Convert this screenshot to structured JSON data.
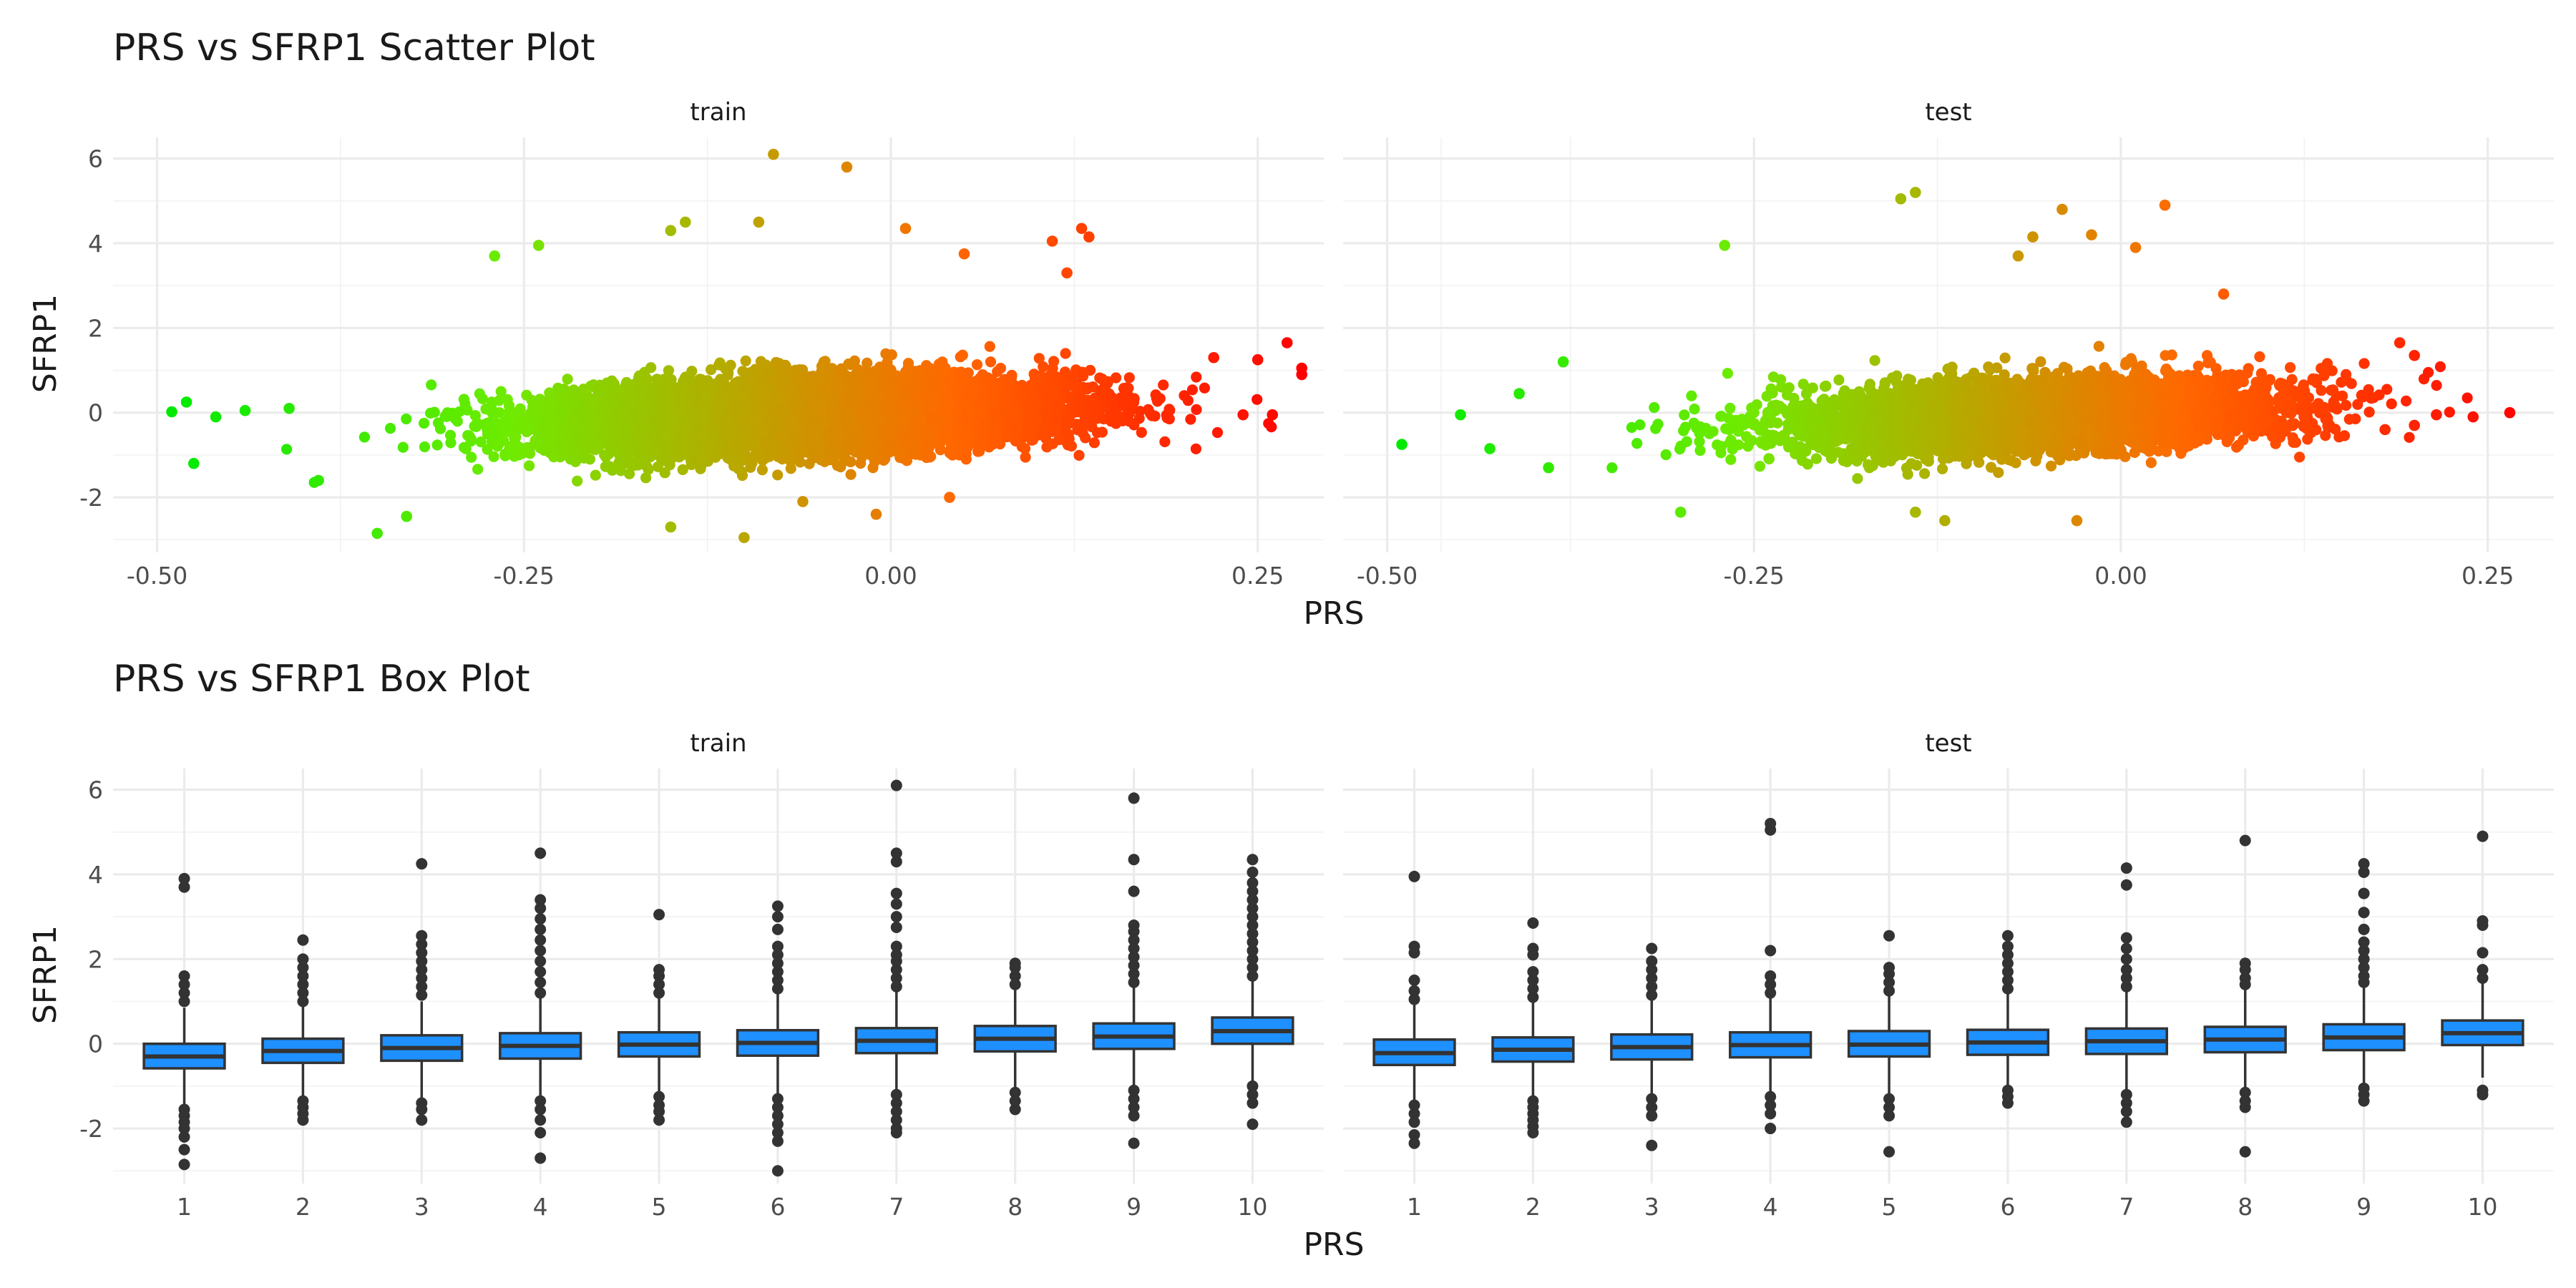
{
  "chart_data": [
    {
      "type": "scatter",
      "title": "PRS vs SFRP1 Scatter Plot",
      "xlabel": "PRS",
      "ylabel": "SFRP1",
      "facets": [
        "train",
        "test"
      ],
      "xlim": [
        -0.53,
        0.295
      ],
      "ylim": [
        -3.3,
        6.5
      ],
      "x_ticks": [
        -0.5,
        -0.25,
        0.0,
        0.25
      ],
      "x_tick_labels": [
        "-0.50",
        "-0.25",
        "0.00",
        "0.25"
      ],
      "y_ticks": [
        -2,
        0,
        2,
        4,
        6
      ],
      "y_tick_labels": [
        "-2",
        "0",
        "2",
        "4",
        "6"
      ],
      "grid": true,
      "color_scale": {
        "low": "#00ff00",
        "high": "#ff0000",
        "mapped_to": "PRS",
        "range": [
          -0.49,
          0.28
        ]
      },
      "panels": {
        "train": {
          "approx_points": 9000,
          "trend": {
            "slope": 1.2,
            "intercept": 0.0
          },
          "x_range": [
            -0.49,
            0.28
          ],
          "points": [
            {
              "x": -0.49,
              "y": 0.02
            },
            {
              "x": -0.48,
              "y": 0.25
            },
            {
              "x": -0.475,
              "y": -1.2
            },
            {
              "x": -0.46,
              "y": -0.1
            },
            {
              "x": -0.44,
              "y": 0.05
            },
            {
              "x": -0.41,
              "y": 0.1
            },
            {
              "x": -0.39,
              "y": -1.6
            },
            {
              "x": -0.35,
              "y": -2.85
            },
            {
              "x": -0.33,
              "y": -2.45
            },
            {
              "x": -0.27,
              "y": 3.7
            },
            {
              "x": -0.24,
              "y": 3.95
            },
            {
              "x": -0.15,
              "y": -2.7
            },
            {
              "x": -0.14,
              "y": 4.5
            },
            {
              "x": -0.15,
              "y": 4.3
            },
            {
              "x": -0.08,
              "y": 6.1
            },
            {
              "x": -0.03,
              "y": 5.8
            },
            {
              "x": -0.09,
              "y": 4.5
            },
            {
              "x": -0.1,
              "y": -2.95
            },
            {
              "x": -0.06,
              "y": -2.1
            },
            {
              "x": 0.01,
              "y": 4.35
            },
            {
              "x": 0.05,
              "y": 3.75
            },
            {
              "x": 0.04,
              "y": -2.0
            },
            {
              "x": 0.11,
              "y": 4.05
            },
            {
              "x": 0.13,
              "y": 4.35
            },
            {
              "x": 0.135,
              "y": 4.15
            },
            {
              "x": 0.12,
              "y": 3.3
            },
            {
              "x": 0.22,
              "y": 1.3
            },
            {
              "x": 0.24,
              "y": -0.05
            },
            {
              "x": 0.25,
              "y": 1.25
            },
            {
              "x": 0.27,
              "y": 1.65
            },
            {
              "x": 0.28,
              "y": 1.05
            },
            {
              "x": 0.28,
              "y": 0.9
            },
            {
              "x": 0.26,
              "y": -0.05
            },
            {
              "x": -0.01,
              "y": -2.4
            }
          ]
        },
        "test": {
          "approx_points": 4500,
          "trend": {
            "slope": 1.2,
            "intercept": 0.0
          },
          "x_range": [
            -0.49,
            0.265
          ],
          "points": [
            {
              "x": -0.49,
              "y": -0.75
            },
            {
              "x": -0.45,
              "y": -0.05
            },
            {
              "x": -0.43,
              "y": -0.85
            },
            {
              "x": -0.41,
              "y": 0.45
            },
            {
              "x": -0.39,
              "y": -1.3
            },
            {
              "x": -0.38,
              "y": 1.2
            },
            {
              "x": -0.27,
              "y": 3.95
            },
            {
              "x": -0.3,
              "y": -2.35
            },
            {
              "x": -0.15,
              "y": 5.05
            },
            {
              "x": -0.14,
              "y": 5.2
            },
            {
              "x": -0.04,
              "y": 4.8
            },
            {
              "x": -0.07,
              "y": 3.7
            },
            {
              "x": -0.06,
              "y": 4.15
            },
            {
              "x": -0.02,
              "y": 4.2
            },
            {
              "x": 0.01,
              "y": 3.9
            },
            {
              "x": 0.03,
              "y": 4.9
            },
            {
              "x": 0.07,
              "y": 2.8
            },
            {
              "x": -0.03,
              "y": -2.55
            },
            {
              "x": -0.12,
              "y": -2.55
            },
            {
              "x": -0.14,
              "y": -2.35
            },
            {
              "x": 0.19,
              "y": 1.65
            },
            {
              "x": 0.2,
              "y": 1.35
            },
            {
              "x": 0.18,
              "y": -0.4
            },
            {
              "x": 0.2,
              "y": -0.3
            },
            {
              "x": 0.215,
              "y": -0.05
            },
            {
              "x": 0.24,
              "y": -0.1
            },
            {
              "x": 0.265,
              "y": 0.0
            }
          ]
        }
      }
    },
    {
      "type": "box",
      "title": "PRS vs SFRP1 Box Plot",
      "xlabel": "PRS",
      "ylabel": "SFRP1",
      "facets": [
        "train",
        "test"
      ],
      "categories": [
        "1",
        "2",
        "3",
        "4",
        "5",
        "6",
        "7",
        "8",
        "9",
        "10"
      ],
      "ylim": [
        -3.3,
        6.5
      ],
      "y_ticks": [
        -2,
        0,
        2,
        4,
        6
      ],
      "y_tick_labels": [
        "-2",
        "0",
        "2",
        "4",
        "6"
      ],
      "grid": true,
      "box_fill": "#1e90ff",
      "box_line": "#333333",
      "panels": {
        "train": {
          "boxes": [
            {
              "q1": -0.58,
              "median": -0.3,
              "q3": 0.0,
              "whisker_low": -1.45,
              "whisker_high": 0.85,
              "outliers": [
                -1.55,
                -1.7,
                -1.85,
                -2.0,
                -2.2,
                -2.5,
                -2.85,
                1.0,
                1.2,
                1.4,
                1.6,
                3.7,
                3.9
              ]
            },
            {
              "q1": -0.45,
              "median": -0.17,
              "q3": 0.12,
              "whisker_low": -1.25,
              "whisker_high": 0.9,
              "outliers": [
                -1.35,
                -1.5,
                -1.65,
                -1.8,
                1.0,
                1.2,
                1.4,
                1.6,
                1.8,
                2.0,
                2.45
              ]
            },
            {
              "q1": -0.4,
              "median": -0.1,
              "q3": 0.2,
              "whisker_low": -1.3,
              "whisker_high": 1.0,
              "outliers": [
                -1.4,
                -1.55,
                -1.8,
                1.15,
                1.35,
                1.55,
                1.75,
                1.95,
                2.15,
                2.35,
                2.55,
                4.25
              ]
            },
            {
              "q1": -0.35,
              "median": -0.05,
              "q3": 0.25,
              "whisker_low": -1.25,
              "whisker_high": 1.1,
              "outliers": [
                -1.35,
                -1.55,
                -1.8,
                -2.1,
                -2.7,
                1.2,
                1.45,
                1.7,
                1.95,
                2.2,
                2.45,
                2.7,
                2.95,
                3.2,
                3.4,
                4.5
              ]
            },
            {
              "q1": -0.3,
              "median": -0.02,
              "q3": 0.27,
              "whisker_low": -1.15,
              "whisker_high": 1.1,
              "outliers": [
                -1.25,
                -1.45,
                -1.6,
                -1.8,
                1.2,
                1.4,
                1.6,
                1.75,
                3.05
              ]
            },
            {
              "q1": -0.28,
              "median": 0.02,
              "q3": 0.32,
              "whisker_low": -1.2,
              "whisker_high": 1.2,
              "outliers": [
                -1.3,
                -1.5,
                -1.7,
                -1.9,
                -2.1,
                -2.3,
                -3.0,
                1.3,
                1.5,
                1.7,
                1.9,
                2.1,
                2.3,
                2.7,
                3.0,
                3.25
              ]
            },
            {
              "q1": -0.22,
              "median": 0.07,
              "q3": 0.37,
              "whisker_low": -1.1,
              "whisker_high": 1.25,
              "outliers": [
                -1.2,
                -1.4,
                -1.6,
                -1.8,
                -2.0,
                -2.1,
                1.35,
                1.55,
                1.75,
                1.95,
                2.1,
                2.3,
                2.75,
                3.0,
                3.3,
                3.55,
                4.3,
                4.5,
                6.1
              ]
            },
            {
              "q1": -0.18,
              "median": 0.12,
              "q3": 0.42,
              "whisker_low": -1.05,
              "whisker_high": 1.3,
              "outliers": [
                -1.15,
                -1.35,
                -1.55,
                1.4,
                1.6,
                1.8,
                1.9
              ]
            },
            {
              "q1": -0.12,
              "median": 0.17,
              "q3": 0.48,
              "whisker_low": -1.0,
              "whisker_high": 1.35,
              "outliers": [
                -1.1,
                -1.3,
                -1.5,
                -1.7,
                -2.35,
                1.45,
                1.65,
                1.85,
                2.05,
                2.25,
                2.45,
                2.65,
                2.8,
                3.6,
                4.35,
                5.8
              ]
            },
            {
              "q1": 0.0,
              "median": 0.3,
              "q3": 0.62,
              "whisker_low": -0.9,
              "whisker_high": 1.5,
              "outliers": [
                -1.0,
                -1.2,
                -1.4,
                -1.9,
                1.6,
                1.8,
                2.0,
                2.2,
                2.4,
                2.6,
                2.8,
                3.0,
                3.2,
                3.4,
                3.6,
                3.8,
                4.05,
                4.35
              ]
            }
          ]
        },
        "test": {
          "boxes": [
            {
              "q1": -0.5,
              "median": -0.22,
              "q3": 0.1,
              "whisker_low": -1.35,
              "whisker_high": 0.95,
              "outliers": [
                -1.45,
                -1.65,
                -1.85,
                -2.15,
                -2.35,
                1.05,
                1.25,
                1.5,
                2.15,
                2.3,
                3.95
              ]
            },
            {
              "q1": -0.42,
              "median": -0.14,
              "q3": 0.15,
              "whisker_low": -1.25,
              "whisker_high": 1.0,
              "outliers": [
                -1.35,
                -1.5,
                -1.65,
                -1.8,
                -1.95,
                -2.1,
                1.1,
                1.3,
                1.5,
                1.7,
                2.1,
                2.25,
                2.85
              ]
            },
            {
              "q1": -0.37,
              "median": -0.08,
              "q3": 0.22,
              "whisker_low": -1.2,
              "whisker_high": 1.05,
              "outliers": [
                -1.3,
                -1.5,
                -1.7,
                -2.4,
                1.15,
                1.35,
                1.55,
                1.75,
                1.95,
                2.25
              ]
            },
            {
              "q1": -0.32,
              "median": -0.03,
              "q3": 0.27,
              "whisker_low": -1.15,
              "whisker_high": 1.1,
              "outliers": [
                -1.25,
                -1.45,
                -1.65,
                -2.0,
                1.2,
                1.4,
                1.6,
                2.2,
                5.05,
                5.2
              ]
            },
            {
              "q1": -0.3,
              "median": -0.02,
              "q3": 0.3,
              "whisker_low": -1.2,
              "whisker_high": 1.15,
              "outliers": [
                -1.3,
                -1.5,
                -1.7,
                -2.55,
                1.25,
                1.45,
                1.65,
                1.8,
                2.55
              ]
            },
            {
              "q1": -0.26,
              "median": 0.03,
              "q3": 0.33,
              "whisker_low": -1.0,
              "whisker_high": 1.2,
              "outliers": [
                -1.1,
                -1.25,
                -1.4,
                1.3,
                1.5,
                1.7,
                1.9,
                2.1,
                2.3,
                2.55
              ]
            },
            {
              "q1": -0.24,
              "median": 0.06,
              "q3": 0.36,
              "whisker_low": -1.1,
              "whisker_high": 1.25,
              "outliers": [
                -1.2,
                -1.4,
                -1.6,
                -1.85,
                1.35,
                1.55,
                1.75,
                2.0,
                2.25,
                2.5,
                3.75,
                4.15
              ]
            },
            {
              "q1": -0.2,
              "median": 0.1,
              "q3": 0.4,
              "whisker_low": -1.05,
              "whisker_high": 1.3,
              "outliers": [
                -1.15,
                -1.35,
                -1.5,
                -2.55,
                1.4,
                1.55,
                1.75,
                1.9,
                4.8
              ]
            },
            {
              "q1": -0.15,
              "median": 0.15,
              "q3": 0.46,
              "whisker_low": -0.95,
              "whisker_high": 1.35,
              "outliers": [
                -1.05,
                -1.2,
                -1.35,
                1.45,
                1.6,
                1.8,
                2.0,
                2.2,
                2.4,
                2.7,
                3.1,
                3.55,
                4.05,
                4.25
              ]
            },
            {
              "q1": -0.03,
              "median": 0.25,
              "q3": 0.55,
              "whisker_low": -0.8,
              "whisker_high": 1.45,
              "outliers": [
                -1.1,
                -1.2,
                1.55,
                1.75,
                2.15,
                2.8,
                2.9,
                4.9
              ]
            }
          ]
        }
      }
    }
  ]
}
